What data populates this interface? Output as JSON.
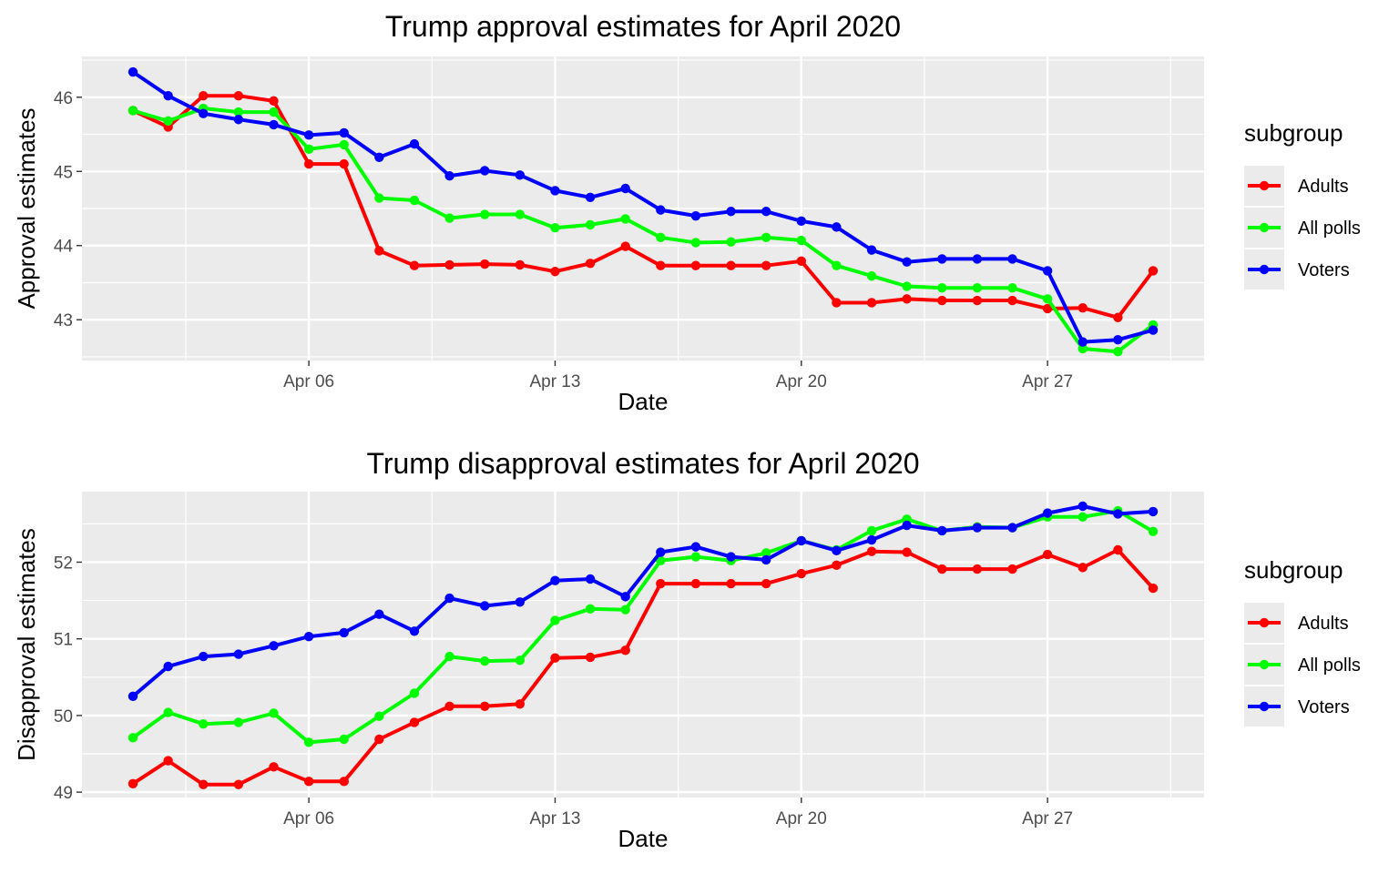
{
  "chart_data": [
    {
      "type": "line",
      "title": "Trump approval estimates for April 2020",
      "xlabel": "Date",
      "ylabel": "Approval estimates",
      "x_ticks": [
        "Apr 06",
        "Apr 13",
        "Apr 20",
        "Apr 27"
      ],
      "y_ticks": [
        "43",
        "44",
        "45",
        "46"
      ],
      "ylim": [
        42.45,
        46.55
      ],
      "grid": true,
      "legend": {
        "title": "subgroup",
        "placement": "right"
      },
      "x": [
        "2020-04-01",
        "2020-04-02",
        "2020-04-03",
        "2020-04-04",
        "2020-04-05",
        "2020-04-06",
        "2020-04-07",
        "2020-04-08",
        "2020-04-09",
        "2020-04-10",
        "2020-04-11",
        "2020-04-12",
        "2020-04-13",
        "2020-04-14",
        "2020-04-15",
        "2020-04-16",
        "2020-04-17",
        "2020-04-18",
        "2020-04-19",
        "2020-04-20",
        "2020-04-21",
        "2020-04-22",
        "2020-04-23",
        "2020-04-24",
        "2020-04-25",
        "2020-04-26",
        "2020-04-27",
        "2020-04-28",
        "2020-04-29",
        "2020-04-30"
      ],
      "series": [
        {
          "name": "Adults",
          "color": "#ff0000",
          "values": [
            45.82,
            45.6,
            46.02,
            46.02,
            45.95,
            45.1,
            45.1,
            43.93,
            43.73,
            43.74,
            43.75,
            43.74,
            43.65,
            43.76,
            43.99,
            43.73,
            43.73,
            43.73,
            43.73,
            43.79,
            43.23,
            43.23,
            43.28,
            43.26,
            43.26,
            43.26,
            43.15,
            43.16,
            43.03,
            43.66
          ]
        },
        {
          "name": "All polls",
          "color": "#00ff00",
          "values": [
            45.82,
            45.68,
            45.85,
            45.8,
            45.8,
            45.3,
            45.36,
            44.64,
            44.61,
            44.37,
            44.42,
            44.42,
            44.24,
            44.28,
            44.36,
            44.11,
            44.04,
            44.05,
            44.11,
            44.07,
            43.73,
            43.59,
            43.45,
            43.43,
            43.43,
            43.43,
            43.28,
            42.61,
            42.57,
            42.93
          ]
        },
        {
          "name": "Voters",
          "color": "#0000ff",
          "values": [
            46.34,
            46.02,
            45.78,
            45.7,
            45.63,
            45.49,
            45.52,
            45.19,
            45.37,
            44.94,
            45.01,
            44.95,
            44.74,
            44.65,
            44.77,
            44.48,
            44.4,
            44.46,
            44.46,
            44.33,
            44.25,
            43.94,
            43.78,
            43.82,
            43.82,
            43.82,
            43.66,
            42.7,
            42.73,
            42.86
          ]
        }
      ]
    },
    {
      "type": "line",
      "title": "Trump disapproval estimates for April 2020",
      "xlabel": "Date",
      "ylabel": "Disapproval estimates",
      "x_ticks": [
        "Apr 06",
        "Apr 13",
        "Apr 20",
        "Apr 27"
      ],
      "y_ticks": [
        "49",
        "50",
        "51",
        "52"
      ],
      "ylim": [
        48.93,
        52.92
      ],
      "grid": true,
      "legend": {
        "title": "subgroup",
        "placement": "right"
      },
      "x": [
        "2020-04-01",
        "2020-04-02",
        "2020-04-03",
        "2020-04-04",
        "2020-04-05",
        "2020-04-06",
        "2020-04-07",
        "2020-04-08",
        "2020-04-09",
        "2020-04-10",
        "2020-04-11",
        "2020-04-12",
        "2020-04-13",
        "2020-04-14",
        "2020-04-15",
        "2020-04-16",
        "2020-04-17",
        "2020-04-18",
        "2020-04-19",
        "2020-04-20",
        "2020-04-21",
        "2020-04-22",
        "2020-04-23",
        "2020-04-24",
        "2020-04-25",
        "2020-04-26",
        "2020-04-27",
        "2020-04-28",
        "2020-04-29",
        "2020-04-30"
      ],
      "series": [
        {
          "name": "Adults",
          "color": "#ff0000",
          "values": [
            49.11,
            49.41,
            49.1,
            49.1,
            49.33,
            49.14,
            49.14,
            49.69,
            49.91,
            50.12,
            50.12,
            50.15,
            50.75,
            50.76,
            50.85,
            51.72,
            51.72,
            51.72,
            51.72,
            51.85,
            51.96,
            52.14,
            52.13,
            51.91,
            51.91,
            51.91,
            52.1,
            51.93,
            52.16,
            51.66
          ]
        },
        {
          "name": "All polls",
          "color": "#00ff00",
          "values": [
            49.71,
            50.04,
            49.89,
            49.91,
            50.03,
            49.65,
            49.69,
            49.99,
            50.29,
            50.77,
            50.71,
            50.72,
            51.24,
            51.39,
            51.38,
            52.02,
            52.07,
            52.02,
            52.12,
            52.28,
            52.16,
            52.41,
            52.56,
            52.41,
            52.46,
            52.45,
            52.59,
            52.59,
            52.67,
            52.4
          ]
        },
        {
          "name": "Voters",
          "color": "#0000ff",
          "values": [
            50.25,
            50.64,
            50.77,
            50.8,
            50.91,
            51.03,
            51.08,
            51.32,
            51.1,
            51.53,
            51.43,
            51.48,
            51.76,
            51.78,
            51.55,
            52.13,
            52.2,
            52.07,
            52.03,
            52.28,
            52.15,
            52.29,
            52.48,
            52.41,
            52.45,
            52.45,
            52.64,
            52.73,
            52.63,
            52.66
          ]
        }
      ]
    }
  ]
}
